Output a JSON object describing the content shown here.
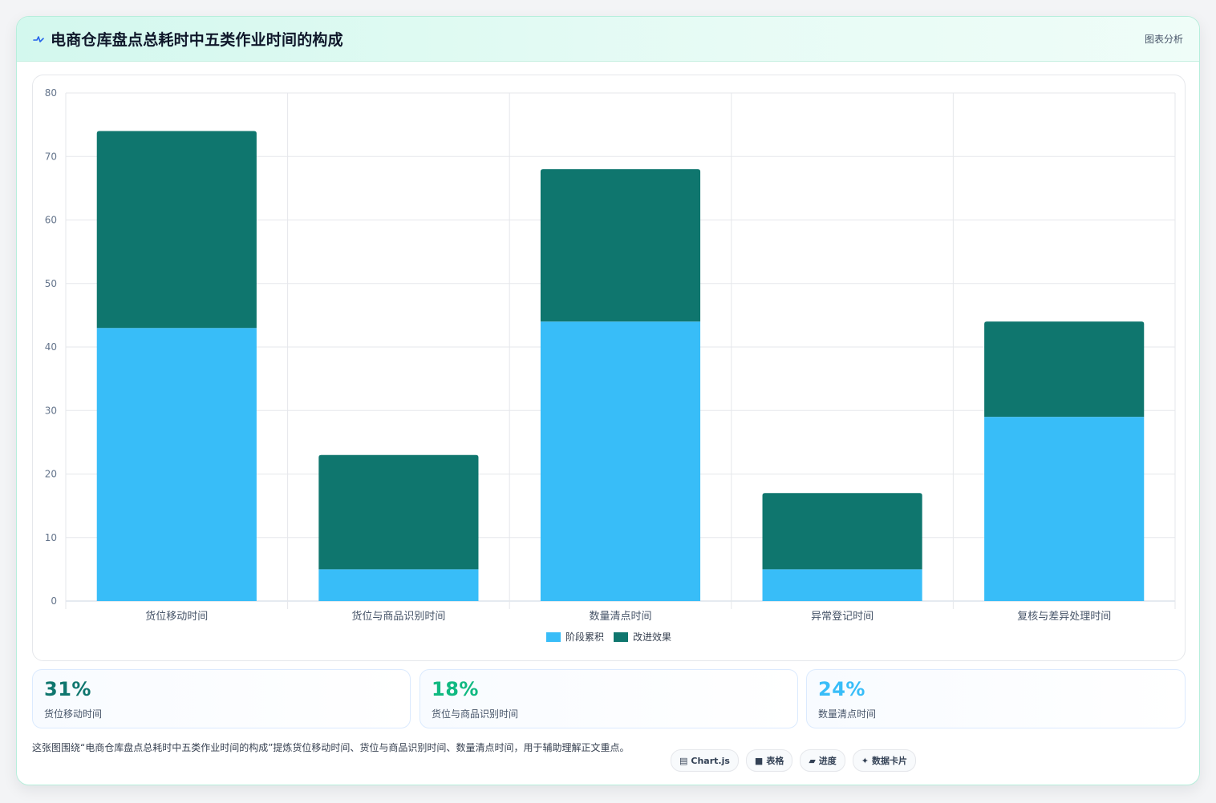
{
  "header": {
    "title": "电商仓库盘点总耗时中五类作业时间的构成",
    "link_label": "图表分析",
    "icon": "pulse-icon"
  },
  "chart_data": {
    "type": "bar",
    "stacked": true,
    "categories": [
      "货位移动时间",
      "货位与商品识别时间",
      "数量清点时间",
      "异常登记时间",
      "复核与差异处理时间"
    ],
    "series": [
      {
        "name": "阶段累积",
        "color": "#38bdf8",
        "values": [
          43,
          5,
          44,
          5,
          29
        ]
      },
      {
        "name": "改进效果",
        "color": "#0f766e",
        "values": [
          31,
          18,
          24,
          12,
          15
        ]
      }
    ],
    "ylim": [
      0,
      80
    ],
    "yticks": [
      0,
      10,
      20,
      30,
      40,
      50,
      60,
      70,
      80
    ],
    "grid": true,
    "legend_position": "bottom"
  },
  "stats": [
    {
      "value": "31%",
      "label": "货位移动时间",
      "color": "#0f766e"
    },
    {
      "value": "18%",
      "label": "货位与商品识别时间",
      "color": "#10b981"
    },
    {
      "value": "24%",
      "label": "数量清点时间",
      "color": "#38bdf8"
    }
  ],
  "footer": {
    "text": "这张图围绕“电商仓库盘点总耗时中五类作业时间的构成”提炼货位移动时间、货位与商品识别时间、数量清点时间，用于辅助理解正文重点。"
  },
  "tags": [
    {
      "icon": "chart-icon",
      "glyph": "▤",
      "label": "Chart.js"
    },
    {
      "icon": "table-icon",
      "glyph": "■",
      "label": "表格"
    },
    {
      "icon": "progress-icon",
      "glyph": "▰",
      "label": "进度"
    },
    {
      "icon": "sparkle-icon",
      "glyph": "✦",
      "label": "数据卡片"
    }
  ]
}
